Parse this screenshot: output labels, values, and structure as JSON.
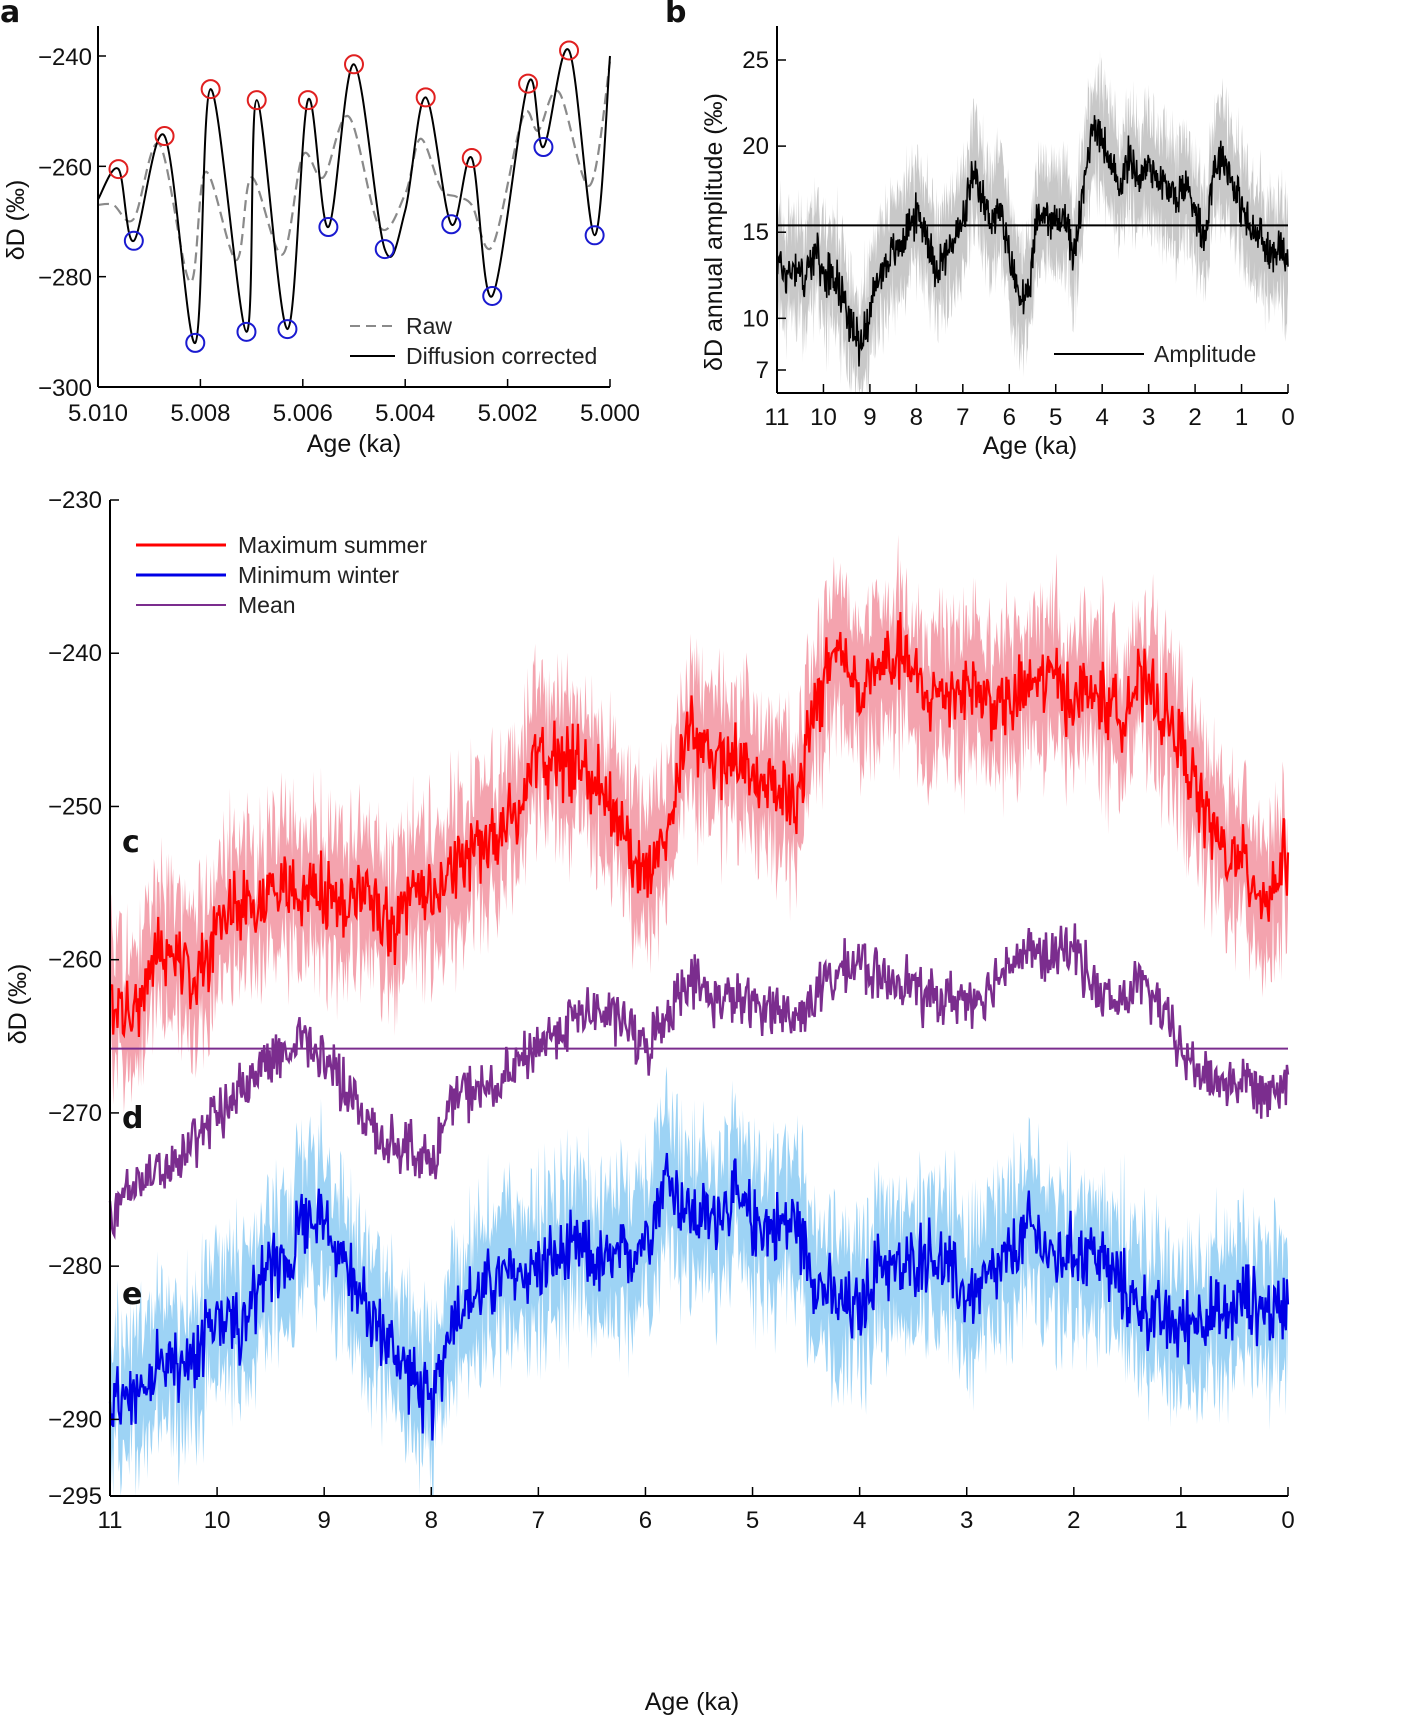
{
  "figure": {
    "panels": [
      "a",
      "b",
      "c",
      "d",
      "e"
    ]
  },
  "chart_data": [
    {
      "panel": "a",
      "type": "line",
      "title": "",
      "xlabel": "Age (ka)",
      "ylabel": "δD (‰)",
      "xlim": [
        5.01,
        5.0
      ],
      "ylim": [
        -300,
        -233
      ],
      "x_reversed": true,
      "xticks": [
        "5.010",
        "5.008",
        "5.006",
        "5.004",
        "5.002",
        "5.000"
      ],
      "xtick_values": [
        5.01,
        5.008,
        5.006,
        5.004,
        5.002,
        5.0
      ],
      "yticks": [
        "−240",
        "−260",
        "−280",
        "−300"
      ],
      "ytick_values": [
        -240,
        -260,
        -280,
        -300
      ],
      "grid": false,
      "legend": {
        "placement": "bottom-right",
        "entries": [
          "Raw",
          "Diffusion corrected"
        ]
      },
      "series": [
        {
          "name": "Diffusion corrected",
          "color": "#000000",
          "style": "solid",
          "x": [
            5.01,
            5.0096,
            5.0093,
            5.0087,
            5.0081,
            5.0078,
            5.0071,
            5.0069,
            5.0063,
            5.0059,
            5.0055,
            5.005,
            5.0044,
            5.004,
            5.0036,
            5.0031,
            5.0027,
            5.0023,
            5.0016,
            5.0013,
            5.0008,
            5.0003,
            5.0
          ],
          "y": [
            -266,
            -260.5,
            -273.5,
            -254.5,
            -292,
            -246,
            -290,
            -248,
            -289.5,
            -248,
            -271,
            -241.5,
            -275,
            -268,
            -247.5,
            -270.5,
            -258.5,
            -283.5,
            -245,
            -256.5,
            -239,
            -272.5,
            -240
          ]
        },
        {
          "name": "Raw",
          "color": "#8a8a8a",
          "style": "dashed",
          "x": [
            5.01,
            5.0097,
            5.0093,
            5.0088,
            5.0082,
            5.0079,
            5.0073,
            5.007,
            5.0064,
            5.006,
            5.0056,
            5.0051,
            5.0045,
            5.004,
            5.0037,
            5.0033,
            5.003,
            5.0027,
            5.0023,
            5.0017,
            5.0014,
            5.001,
            5.0004,
            5.0
          ],
          "y": [
            -267,
            -267,
            -269.5,
            -256,
            -281,
            -261,
            -277,
            -262,
            -276,
            -258,
            -262,
            -251,
            -271,
            -265,
            -255,
            -264,
            -265.5,
            -267,
            -274.5,
            -251,
            -253.5,
            -246.5,
            -263.5,
            -241
          ]
        }
      ],
      "markers": {
        "peaks": {
          "color": "#e02020",
          "x": [
            5.0096,
            5.0087,
            5.0078,
            5.0069,
            5.0059,
            5.005,
            5.0036,
            5.0027,
            5.0016,
            5.0008
          ],
          "y": [
            -260.5,
            -254.5,
            -246,
            -248,
            -248,
            -241.5,
            -247.5,
            -258.5,
            -245,
            -239
          ]
        },
        "troughs": {
          "color": "#1a1ad0",
          "x": [
            5.0093,
            5.0081,
            5.0071,
            5.0063,
            5.0055,
            5.0044,
            5.0031,
            5.0023,
            5.0013,
            5.0003
          ],
          "y": [
            -273.5,
            -292,
            -290,
            -289.5,
            -271,
            -275,
            -270.5,
            -283.5,
            -256.5,
            -272.5
          ]
        }
      }
    },
    {
      "panel": "b",
      "type": "line",
      "title": "",
      "xlabel": "Age (ka)",
      "ylabel": "δD annual amplitude (‰)",
      "xlim": [
        11,
        0
      ],
      "ylim": [
        6.5,
        27
      ],
      "x_reversed": true,
      "xticks": [
        "11",
        "10",
        "9",
        "8",
        "7",
        "6",
        "5",
        "4",
        "3",
        "2",
        "1",
        "0"
      ],
      "xtick_values": [
        11,
        10,
        9,
        8,
        7,
        6,
        5,
        4,
        3,
        2,
        1,
        0
      ],
      "yticks": [
        "7",
        "10",
        "15",
        "20",
        "25"
      ],
      "ytick_values": [
        7,
        10,
        15,
        20,
        25
      ],
      "grid": false,
      "legend": {
        "placement": "bottom-right",
        "entries": [
          "Amplitude"
        ]
      },
      "reference_line": {
        "y": 15.4,
        "color": "#000000"
      },
      "series": [
        {
          "name": "Amplitude",
          "color": "#000000",
          "band_color": "#c8c8c8",
          "band_halfwidth": 2.4,
          "x": [
            11.0,
            10.8,
            10.6,
            10.4,
            10.2,
            10.0,
            9.8,
            9.6,
            9.4,
            9.2,
            9.0,
            8.8,
            8.6,
            8.4,
            8.2,
            8.0,
            7.8,
            7.6,
            7.4,
            7.2,
            7.0,
            6.8,
            6.6,
            6.4,
            6.2,
            6.0,
            5.8,
            5.6,
            5.4,
            5.2,
            5.0,
            4.8,
            4.6,
            4.4,
            4.2,
            4.0,
            3.8,
            3.6,
            3.4,
            3.2,
            3.0,
            2.8,
            2.6,
            2.4,
            2.2,
            2.0,
            1.8,
            1.6,
            1.4,
            1.2,
            1.0,
            0.8,
            0.6,
            0.4,
            0.2,
            0.0
          ],
          "y": [
            13.5,
            12.5,
            13.2,
            12.2,
            14.0,
            12.5,
            12.8,
            11.5,
            9.5,
            8.5,
            10.5,
            12.5,
            13.5,
            14.0,
            15.2,
            16.0,
            15.2,
            13.0,
            13.5,
            14.5,
            15.5,
            18.2,
            17.0,
            15.8,
            16.2,
            13.5,
            11.5,
            10.8,
            15.8,
            16.2,
            15.5,
            16.0,
            13.5,
            17.5,
            21.5,
            20.5,
            18.5,
            17.8,
            19.5,
            18.0,
            19.0,
            18.2,
            17.5,
            17.0,
            17.8,
            16.5,
            14.5,
            18.8,
            19.5,
            18.0,
            16.5,
            15.0,
            14.8,
            13.5,
            14.5,
            13.0
          ]
        }
      ]
    },
    {
      "panel": "c-d-e",
      "type": "line",
      "title": "",
      "xlabel": "Age (ka)",
      "ylabel": "δD (‰)",
      "xlim": [
        11,
        0
      ],
      "ylim": [
        -295,
        -230
      ],
      "x_reversed": true,
      "xticks": [
        "11",
        "10",
        "9",
        "8",
        "7",
        "6",
        "5",
        "4",
        "3",
        "2",
        "1",
        "0"
      ],
      "xtick_values": [
        11,
        10,
        9,
        8,
        7,
        6,
        5,
        4,
        3,
        2,
        1,
        0
      ],
      "yticks": [
        "−230",
        "−240",
        "−250",
        "−260",
        "−270",
        "−280",
        "−290",
        "−295"
      ],
      "ytick_values": [
        -230,
        -240,
        -250,
        -260,
        -270,
        -280,
        -290,
        -295
      ],
      "grid": false,
      "legend": {
        "placement": "top-left",
        "entries": [
          "Maximum summer",
          "Minimum winter",
          "Mean"
        ]
      },
      "panel_labels": {
        "c": "c",
        "d": "d",
        "e": "e"
      },
      "reference_line": {
        "y": -265.8,
        "color": "#7b2d8e"
      },
      "series": [
        {
          "name": "Maximum summer",
          "panel": "c",
          "color": "#ff0000",
          "band_color": "#f4a3ae",
          "band_halfwidth": 3.5,
          "x": [
            11.0,
            10.8,
            10.6,
            10.4,
            10.2,
            10.0,
            9.8,
            9.6,
            9.4,
            9.2,
            9.0,
            8.8,
            8.6,
            8.4,
            8.2,
            8.0,
            7.8,
            7.6,
            7.4,
            7.2,
            7.0,
            6.8,
            6.6,
            6.4,
            6.2,
            6.0,
            5.8,
            5.6,
            5.4,
            5.2,
            5.0,
            4.8,
            4.6,
            4.4,
            4.2,
            4.0,
            3.8,
            3.6,
            3.4,
            3.2,
            3.0,
            2.8,
            2.6,
            2.4,
            2.2,
            2.0,
            1.8,
            1.6,
            1.4,
            1.2,
            1.0,
            0.8,
            0.6,
            0.4,
            0.2,
            0.0
          ],
          "y": [
            -263,
            -264,
            -260,
            -259,
            -261,
            -258,
            -257,
            -256,
            -255.5,
            -256,
            -255.5,
            -257,
            -255,
            -258,
            -256,
            -256.5,
            -254,
            -252.5,
            -252,
            -250.5,
            -247,
            -247,
            -247.5,
            -248.5,
            -252,
            -255,
            -251,
            -245,
            -247,
            -246.5,
            -248,
            -248.5,
            -250,
            -243,
            -239.5,
            -243,
            -241,
            -240,
            -243,
            -242.5,
            -242,
            -243,
            -243.5,
            -242,
            -241.5,
            -243,
            -242.5,
            -244,
            -242,
            -243.5,
            -246,
            -250,
            -253,
            -254,
            -256,
            -253
          ]
        },
        {
          "name": "Mean",
          "panel": "d",
          "color": "#7b2d8e",
          "x": [
            11.0,
            10.8,
            10.6,
            10.4,
            10.2,
            10.0,
            9.8,
            9.6,
            9.4,
            9.2,
            9.0,
            8.8,
            8.6,
            8.4,
            8.2,
            8.0,
            7.8,
            7.6,
            7.4,
            7.2,
            7.0,
            6.8,
            6.6,
            6.4,
            6.2,
            6.0,
            5.8,
            5.6,
            5.4,
            5.2,
            5.0,
            4.8,
            4.6,
            4.4,
            4.2,
            4.0,
            3.8,
            3.6,
            3.4,
            3.2,
            3.0,
            2.8,
            2.6,
            2.4,
            2.2,
            2.0,
            1.8,
            1.6,
            1.4,
            1.2,
            1.0,
            0.8,
            0.6,
            0.4,
            0.2,
            0.0
          ],
          "y": [
            -276.5,
            -275,
            -274,
            -273,
            -271.5,
            -270.5,
            -268.5,
            -267,
            -266,
            -265,
            -266.5,
            -268.5,
            -270.5,
            -272,
            -272,
            -273.5,
            -269,
            -268.5,
            -268.5,
            -267,
            -265.5,
            -264.5,
            -263.5,
            -263.5,
            -264,
            -266,
            -263.5,
            -261,
            -262.5,
            -262.5,
            -263,
            -263,
            -264,
            -262,
            -261,
            -260,
            -261.5,
            -261,
            -262.5,
            -262.5,
            -262.5,
            -262,
            -260,
            -259.5,
            -260,
            -259,
            -262,
            -263,
            -261.5,
            -263,
            -266,
            -267.5,
            -268,
            -268,
            -268.5,
            -267.5
          ]
        },
        {
          "name": "Minimum winter",
          "panel": "e",
          "color": "#0000e6",
          "band_color": "#9dd3f5",
          "band_halfwidth": 3.5,
          "x": [
            11.0,
            10.8,
            10.6,
            10.4,
            10.2,
            10.0,
            9.8,
            9.6,
            9.4,
            9.2,
            9.0,
            8.8,
            8.6,
            8.4,
            8.2,
            8.0,
            7.8,
            7.6,
            7.4,
            7.2,
            7.0,
            6.8,
            6.6,
            6.4,
            6.2,
            6.0,
            5.8,
            5.6,
            5.4,
            5.2,
            5.0,
            4.8,
            4.6,
            4.4,
            4.2,
            4.0,
            3.8,
            3.6,
            3.4,
            3.2,
            3.0,
            2.8,
            2.6,
            2.4,
            2.2,
            2.0,
            1.8,
            1.6,
            1.4,
            1.2,
            1.0,
            0.8,
            0.6,
            0.4,
            0.2,
            0.0
          ],
          "y": [
            -289,
            -288,
            -287,
            -286.5,
            -285.5,
            -283,
            -284,
            -281,
            -280,
            -277,
            -276.5,
            -280,
            -283,
            -285,
            -287,
            -289.5,
            -283,
            -282,
            -281,
            -280.5,
            -280,
            -279.5,
            -279,
            -280,
            -279.5,
            -278,
            -274,
            -276.5,
            -277,
            -275.5,
            -277,
            -277.5,
            -277,
            -281,
            -282.5,
            -283,
            -279.5,
            -280.5,
            -279,
            -280,
            -282,
            -281,
            -279.5,
            -277.5,
            -279.5,
            -279,
            -279,
            -281,
            -282.5,
            -283.5,
            -284,
            -283,
            -283.5,
            -282,
            -283,
            -282.5
          ]
        }
      ]
    }
  ]
}
